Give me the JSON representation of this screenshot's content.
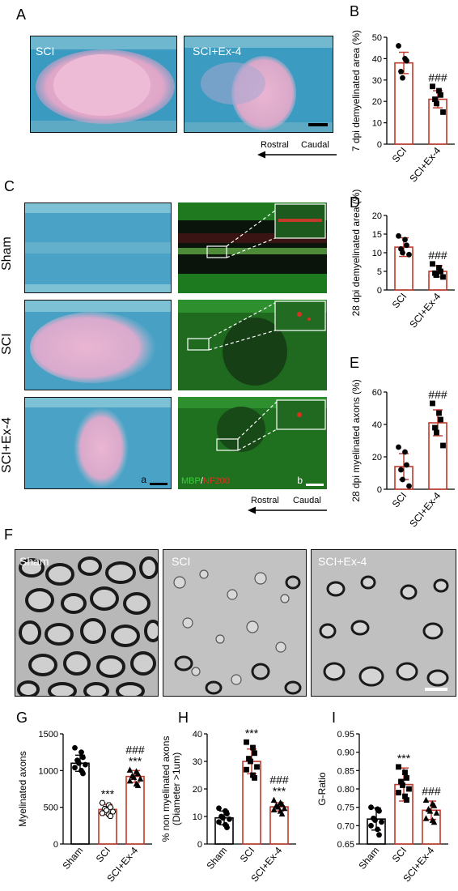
{
  "panels": {
    "A": {
      "letter": "A",
      "images": [
        {
          "label": "SCI"
        },
        {
          "label": "SCI+Ex-4"
        }
      ],
      "direction": {
        "rostral": "Rostral",
        "caudal": "Caudal"
      }
    },
    "C": {
      "letter": "C",
      "rows": [
        "Sham",
        "SCI",
        "SCI+Ex-4"
      ],
      "sub_a": "a",
      "sub_b": "b",
      "stain_mbp": "MBP",
      "stain_sep": "/",
      "stain_nf": "NF200",
      "direction": {
        "rostral": "Rostral",
        "caudal": "Caudal"
      }
    },
    "F": {
      "letter": "F",
      "images": [
        {
          "label": "Sham"
        },
        {
          "label": "SCI"
        },
        {
          "label": "SCI+Ex-4"
        }
      ]
    }
  },
  "colors": {
    "sci_red": "#c0392b",
    "luxol_blue": "#3e9ec4",
    "lesion_pink": "#e9b3cf",
    "fluor_green": "#2e9a2e",
    "fluor_red": "#d8321f"
  },
  "chart_data": [
    {
      "id": "B",
      "letter": "B",
      "type": "bar",
      "categories": [
        "SCI",
        "SCI+Ex-4"
      ],
      "values": [
        38,
        21
      ],
      "errors": [
        5,
        4
      ],
      "points": [
        [
          46,
          40,
          39,
          34,
          31
        ],
        [
          27,
          25,
          23,
          21,
          19,
          15
        ]
      ],
      "markers": [
        "circle",
        "square"
      ],
      "ylabel": "7 dpi demyelinated area (%)",
      "ylim": [
        0,
        50
      ],
      "yticks": [
        0,
        10,
        20,
        30,
        40,
        50
      ],
      "annotations": [
        {
          "index": 1,
          "text": "###"
        }
      ]
    },
    {
      "id": "D",
      "letter": "D",
      "type": "bar",
      "categories": [
        "SCI",
        "SCI+Ex-4"
      ],
      "values": [
        11.5,
        5
      ],
      "errors": [
        2.5,
        1.5
      ],
      "points": [
        [
          14.5,
          13.5,
          12,
          11,
          10,
          9.5
        ],
        [
          7,
          6,
          5,
          4.5,
          4,
          3.5
        ]
      ],
      "markers": [
        "circle",
        "square"
      ],
      "ylabel": "28 dpi demyelinated area (%)",
      "ylim": [
        0,
        20
      ],
      "yticks": [
        0,
        5,
        10,
        15,
        20
      ],
      "annotations": [
        {
          "index": 1,
          "text": "###"
        }
      ]
    },
    {
      "id": "E",
      "letter": "E",
      "type": "bar",
      "categories": [
        "SCI",
        "SCI+Ex-4"
      ],
      "values": [
        14,
        41
      ],
      "errors": [
        8,
        8
      ],
      "points": [
        [
          26,
          23,
          15,
          12,
          6,
          2
        ],
        [
          53,
          47,
          43,
          38,
          35,
          27
        ]
      ],
      "markers": [
        "circle",
        "square"
      ],
      "ylabel": "28 dpi myelinated axons (%)",
      "ylim": [
        0,
        60
      ],
      "yticks": [
        0,
        20,
        40,
        60
      ],
      "annotations": [
        {
          "index": 1,
          "text": "###"
        }
      ]
    },
    {
      "id": "G",
      "letter": "G",
      "type": "bar",
      "categories": [
        "Sham",
        "SCI",
        "SCI+Ex-4"
      ],
      "values": [
        1100,
        470,
        920
      ],
      "errors": [
        110,
        70,
        80
      ],
      "points": [
        [
          1310,
          1250,
          1180,
          1140,
          1100,
          1080,
          1040,
          1000,
          960
        ],
        [
          560,
          530,
          500,
          480,
          460,
          440,
          420,
          400,
          380
        ],
        [
          1010,
          990,
          960,
          930,
          910,
          890,
          860,
          820,
          800
        ]
      ],
      "markers": [
        "circle",
        "hexagon",
        "triangle"
      ],
      "ylabel": "Myelinated axons",
      "ylim": [
        0,
        1500
      ],
      "yticks": [
        0,
        500,
        1000,
        1500
      ],
      "annotations": [
        {
          "index": 1,
          "text": "***"
        },
        {
          "index": 2,
          "text": "###"
        },
        {
          "index": 2,
          "text": "***"
        }
      ]
    },
    {
      "id": "H",
      "letter": "H",
      "type": "bar",
      "categories": [
        "Sham",
        "SCI",
        "SCI+Ex-4"
      ],
      "values": [
        9.5,
        30,
        13.5
      ],
      "errors": [
        2.5,
        4.5,
        1.5
      ],
      "points": [
        [
          13,
          12,
          11,
          10,
          9.5,
          9,
          8,
          7,
          6
        ],
        [
          37,
          35,
          33,
          31,
          30,
          28,
          27,
          25,
          24
        ],
        [
          16,
          15,
          14.5,
          14,
          13.5,
          13,
          12.5,
          12,
          11
        ]
      ],
      "markers": [
        "circle",
        "square",
        "triangle"
      ],
      "ylabel": "% non myelinated axons (Diameter >1um)",
      "ylim": [
        0,
        40
      ],
      "yticks": [
        0,
        10,
        20,
        30,
        40
      ],
      "annotations": [
        {
          "index": 1,
          "text": "***"
        },
        {
          "index": 2,
          "text": "###"
        },
        {
          "index": 2,
          "text": "***"
        }
      ]
    },
    {
      "id": "I",
      "letter": "I",
      "type": "bar",
      "categories": [
        "Sham",
        "SCI",
        "SCI+Ex-4"
      ],
      "values": [
        0.718,
        0.812,
        0.742
      ],
      "errors": [
        0.03,
        0.045,
        0.025
      ],
      "points": [
        [
          0.75,
          0.745,
          0.74,
          0.72,
          0.715,
          0.71,
          0.7,
          0.69,
          0.675
        ],
        [
          0.86,
          0.845,
          0.83,
          0.82,
          0.81,
          0.8,
          0.79,
          0.78,
          0.77
        ],
        [
          0.77,
          0.76,
          0.755,
          0.745,
          0.74,
          0.735,
          0.72,
          0.715,
          0.71
        ]
      ],
      "markers": [
        "circle",
        "square",
        "triangle"
      ],
      "ylabel": "G-Ratio",
      "ylim": [
        0.65,
        0.95
      ],
      "yticks": [
        0.65,
        0.7,
        0.75,
        0.8,
        0.85,
        0.9,
        0.95
      ],
      "annotations": [
        {
          "index": 1,
          "text": "***"
        },
        {
          "index": 2,
          "text": "###"
        }
      ]
    }
  ]
}
